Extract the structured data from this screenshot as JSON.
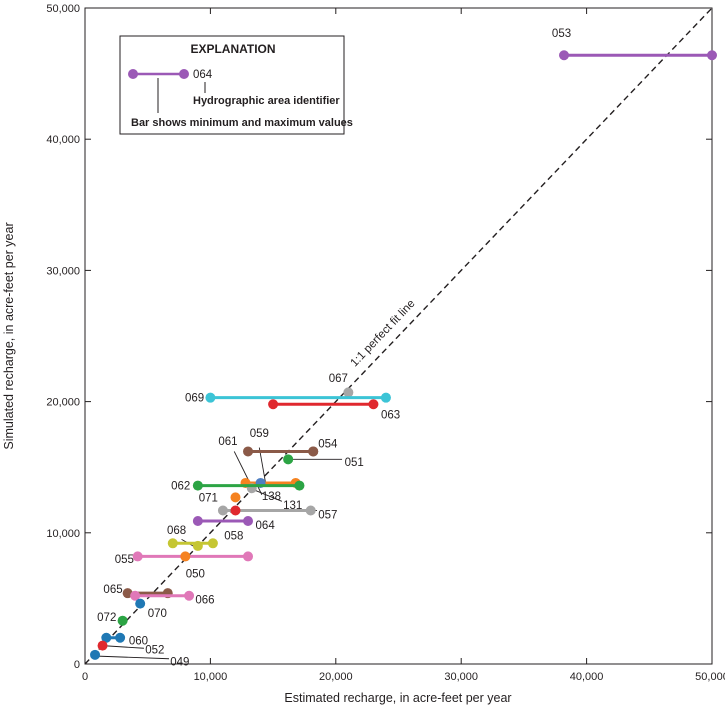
{
  "chart_data": {
    "type": "scatter",
    "xlabel": "Estimated recharge, in acre-feet per year",
    "ylabel": "Simulated recharge, in acre-feet per year",
    "xlim": [
      0,
      50000
    ],
    "ylim": [
      0,
      50000
    ],
    "xticks": [
      0,
      10000,
      20000,
      30000,
      40000,
      50000
    ],
    "yticks": [
      0,
      10000,
      20000,
      30000,
      40000,
      50000
    ],
    "xtick_labels": [
      "0",
      "10,000",
      "20,000",
      "30,000",
      "40,000",
      "50,000"
    ],
    "ytick_labels": [
      "0",
      "10,000",
      "20,000",
      "30,000",
      "40,000",
      "50,000"
    ],
    "grid": false,
    "reference_line": {
      "label": "1:1 perfect fit line",
      "from": [
        0,
        0
      ],
      "to": [
        50000,
        50000
      ],
      "style": "dashed"
    },
    "legend": {
      "title": "EXPLANATION",
      "position": "top-left",
      "sample_id": "064",
      "id_caption": "Hydrographic area identifier",
      "bar_caption": "Bar shows minimum and maximum values",
      "sample_color": "#9b59b6"
    },
    "series": [
      {
        "id": "053",
        "color": "#9b59b6",
        "min": 38200,
        "max": 50000,
        "y": 46400
      },
      {
        "id": "067",
        "color": "#a6a6a6",
        "min": 21000,
        "max": 21000,
        "y": 20700
      },
      {
        "id": "069",
        "color": "#3cc4d6",
        "min": 10000,
        "max": 24000,
        "y": 20300
      },
      {
        "id": "063",
        "color": "#e0282e",
        "min": 15000,
        "max": 23000,
        "y": 19800
      },
      {
        "id": "061",
        "color": "#8b5a48",
        "min": 13000,
        "max": 18200,
        "y": 16200
      },
      {
        "id": "054",
        "color": "#8b5a48",
        "min": 18200,
        "max": 18200,
        "y": 16200
      },
      {
        "id": "051",
        "color": "#2ca444",
        "min": 16200,
        "max": 16200,
        "y": 15600
      },
      {
        "id": "059",
        "color": "#f58220",
        "min": 12800,
        "max": 16800,
        "y": 13800
      },
      {
        "id": "138",
        "color": "#4f7fc2",
        "min": 14000,
        "max": 14000,
        "y": 13800
      },
      {
        "id": "131",
        "color": "#a6a6a6",
        "min": 13300,
        "max": 13300,
        "y": 13400
      },
      {
        "id": "062",
        "color": "#2ca444",
        "min": 9000,
        "max": 17100,
        "y": 13600
      },
      {
        "id": "071",
        "color": "#f58220",
        "min": 12000,
        "max": 12000,
        "y": 12700
      },
      {
        "id": "057",
        "color": "#a6a6a6",
        "min": 11000,
        "max": 18000,
        "y": 11700
      },
      {
        "id": "057-red",
        "label": "",
        "color": "#e0282e",
        "min": 12000,
        "max": 12000,
        "y": 11700
      },
      {
        "id": "064",
        "color": "#9b59b6",
        "min": 9000,
        "max": 13000,
        "y": 10900
      },
      {
        "id": "068",
        "color": "#c5c633",
        "min": 7000,
        "max": 10200,
        "y": 9200
      },
      {
        "id": "058",
        "color": "#c5c633",
        "min": 9000,
        "max": 9000,
        "y": 9000
      },
      {
        "id": "055",
        "color": "#e078b8",
        "min": 4200,
        "max": 13000,
        "y": 8200
      },
      {
        "id": "050",
        "color": "#f58220",
        "min": 8000,
        "max": 8000,
        "y": 8200
      },
      {
        "id": "065",
        "color": "#8b5a48",
        "min": 3400,
        "max": 6600,
        "y": 5400
      },
      {
        "id": "066",
        "color": "#e078b8",
        "min": 4000,
        "max": 8300,
        "y": 5200
      },
      {
        "id": "070",
        "color": "#1f78b4",
        "min": 4400,
        "max": 4400,
        "y": 4600
      },
      {
        "id": "072",
        "color": "#2ca444",
        "min": 3000,
        "max": 3000,
        "y": 3300
      },
      {
        "id": "060",
        "color": "#1f78b4",
        "min": 1700,
        "max": 2800,
        "y": 2000
      },
      {
        "id": "052",
        "color": "#e0282e",
        "min": 1400,
        "max": 1400,
        "y": 1400
      },
      {
        "id": "049",
        "color": "#1f78b4",
        "min": 800,
        "max": 800,
        "y": 700
      }
    ],
    "labels": [
      {
        "text": "053",
        "x": 38000,
        "y": 48100,
        "anchor": "middle"
      },
      {
        "text": "067",
        "x": 20200,
        "y": 21800,
        "anchor": "middle"
      },
      {
        "text": "069",
        "x": 9500,
        "y": 20300,
        "anchor": "end"
      },
      {
        "text": "063",
        "x": 23600,
        "y": 19000,
        "anchor": "start"
      },
      {
        "text": "061",
        "x": 11400,
        "y": 17000,
        "anchor": "middle"
      },
      {
        "text": "059",
        "x": 13900,
        "y": 17600,
        "anchor": "middle"
      },
      {
        "text": "054",
        "x": 18600,
        "y": 16800,
        "anchor": "start"
      },
      {
        "text": "051",
        "x": 20700,
        "y": 15400,
        "anchor": "start"
      },
      {
        "text": "062",
        "x": 8400,
        "y": 13600,
        "anchor": "end"
      },
      {
        "text": "138",
        "x": 14100,
        "y": 12800,
        "anchor": "start"
      },
      {
        "text": "071",
        "x": 10600,
        "y": 12700,
        "anchor": "end"
      },
      {
        "text": "131",
        "x": 15800,
        "y": 12100,
        "anchor": "start"
      },
      {
        "text": "057",
        "x": 18600,
        "y": 11400,
        "anchor": "start"
      },
      {
        "text": "064",
        "x": 13600,
        "y": 10600,
        "anchor": "start"
      },
      {
        "text": "068",
        "x": 7300,
        "y": 10200,
        "anchor": "middle"
      },
      {
        "text": "058",
        "x": 11100,
        "y": 9800,
        "anchor": "start"
      },
      {
        "text": "055",
        "x": 3900,
        "y": 8000,
        "anchor": "end"
      },
      {
        "text": "050",
        "x": 8800,
        "y": 6900,
        "anchor": "middle"
      },
      {
        "text": "065",
        "x": 3000,
        "y": 5700,
        "anchor": "end"
      },
      {
        "text": "066",
        "x": 8800,
        "y": 4900,
        "anchor": "start"
      },
      {
        "text": "070",
        "x": 5000,
        "y": 3900,
        "anchor": "start"
      },
      {
        "text": "072",
        "x": 2500,
        "y": 3600,
        "anchor": "end"
      },
      {
        "text": "060",
        "x": 3500,
        "y": 1800,
        "anchor": "start"
      },
      {
        "text": "052",
        "x": 4800,
        "y": 1100,
        "anchor": "start"
      },
      {
        "text": "049",
        "x": 6800,
        "y": 200,
        "anchor": "start"
      }
    ],
    "leaders": [
      {
        "id": "061",
        "from": [
          11900,
          16200
        ],
        "to": [
          13200,
          13700
        ]
      },
      {
        "id": "059",
        "from": [
          13900,
          16500
        ],
        "to": [
          14400,
          13800
        ]
      },
      {
        "id": "051",
        "from": [
          16200,
          15600
        ],
        "to": [
          20500,
          15600
        ]
      },
      {
        "id": "138",
        "from": [
          13800,
          13500
        ],
        "to": [
          14100,
          12900
        ]
      },
      {
        "id": "131",
        "from": [
          13400,
          13300
        ],
        "to": [
          15700,
          12400
        ]
      },
      {
        "id": "057",
        "from": [
          18000,
          11700
        ],
        "to": [
          18500,
          11700
        ]
      },
      {
        "id": "068",
        "from": [
          7700,
          9500
        ],
        "to": [
          8800,
          8900
        ]
      },
      {
        "id": "052",
        "from": [
          1400,
          1400
        ],
        "to": [
          4700,
          1200
        ]
      },
      {
        "id": "049",
        "from": [
          1000,
          600
        ],
        "to": [
          6700,
          400
        ]
      }
    ]
  }
}
